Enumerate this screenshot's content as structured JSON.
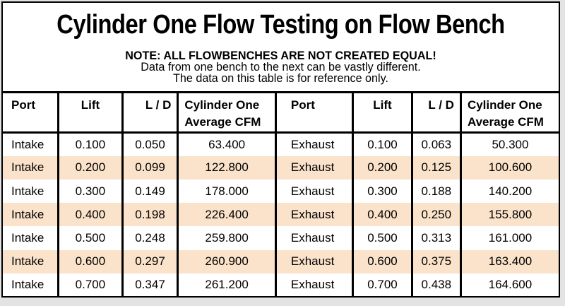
{
  "title": "Cylinder One Flow Testing on Flow Bench",
  "note": {
    "heading": "NOTE: ALL FLOWBENCHES ARE NOT CREATED EQUAL!",
    "line1": "Data from one bench to the next can be vastly different.",
    "line2": "The data on this table is for reference only."
  },
  "colors": {
    "row_shade": "#fbe3cb",
    "border": "#000000",
    "page_margin": "#e3e3e3"
  },
  "table": {
    "headers": [
      "Port",
      "Lift",
      "L / D",
      "Cylinder One\nAverage CFM",
      "Port",
      "Lift",
      "L / D",
      "Cylinder One\nAverage CFM"
    ],
    "rows": [
      {
        "shaded": false,
        "cells": [
          "Intake",
          "0.100",
          "0.050",
          "63.400",
          "Exhaust",
          "0.100",
          "0.063",
          "50.300"
        ]
      },
      {
        "shaded": true,
        "cells": [
          "Intake",
          "0.200",
          "0.099",
          "122.800",
          "Exhaust",
          "0.200",
          "0.125",
          "100.600"
        ]
      },
      {
        "shaded": false,
        "cells": [
          "Intake",
          "0.300",
          "0.149",
          "178.000",
          "Exhaust",
          "0.300",
          "0.188",
          "140.200"
        ]
      },
      {
        "shaded": true,
        "cells": [
          "Intake",
          "0.400",
          "0.198",
          "226.400",
          "Exhaust",
          "0.400",
          "0.250",
          "155.800"
        ]
      },
      {
        "shaded": false,
        "cells": [
          "Intake",
          "0.500",
          "0.248",
          "259.800",
          "Exhaust",
          "0.500",
          "0.313",
          "161.000"
        ]
      },
      {
        "shaded": true,
        "cells": [
          "Intake",
          "0.600",
          "0.297",
          "260.900",
          "Exhaust",
          "0.600",
          "0.375",
          "163.400"
        ]
      },
      {
        "shaded": false,
        "cells": [
          "Intake",
          "0.700",
          "0.347",
          "261.200",
          "Exhaust",
          "0.700",
          "0.438",
          "164.600"
        ]
      }
    ]
  },
  "chart_data": {
    "type": "table",
    "title": "Cylinder One Flow Testing on Flow Bench",
    "columns": [
      "Port",
      "Lift",
      "L / D",
      "Cylinder One Average CFM"
    ],
    "series": [
      {
        "name": "Intake",
        "lift": [
          0.1,
          0.2,
          0.3,
          0.4,
          0.5,
          0.6,
          0.7
        ],
        "l_over_d": [
          0.05,
          0.099,
          0.149,
          0.198,
          0.248,
          0.297,
          0.347
        ],
        "avg_cfm": [
          63.4,
          122.8,
          178.0,
          226.4,
          259.8,
          260.9,
          261.2
        ]
      },
      {
        "name": "Exhaust",
        "lift": [
          0.1,
          0.2,
          0.3,
          0.4,
          0.5,
          0.6,
          0.7
        ],
        "l_over_d": [
          0.063,
          0.125,
          0.188,
          0.25,
          0.313,
          0.375,
          0.438
        ],
        "avg_cfm": [
          50.3,
          100.6,
          140.2,
          155.8,
          161.0,
          163.4,
          164.6
        ]
      }
    ]
  }
}
